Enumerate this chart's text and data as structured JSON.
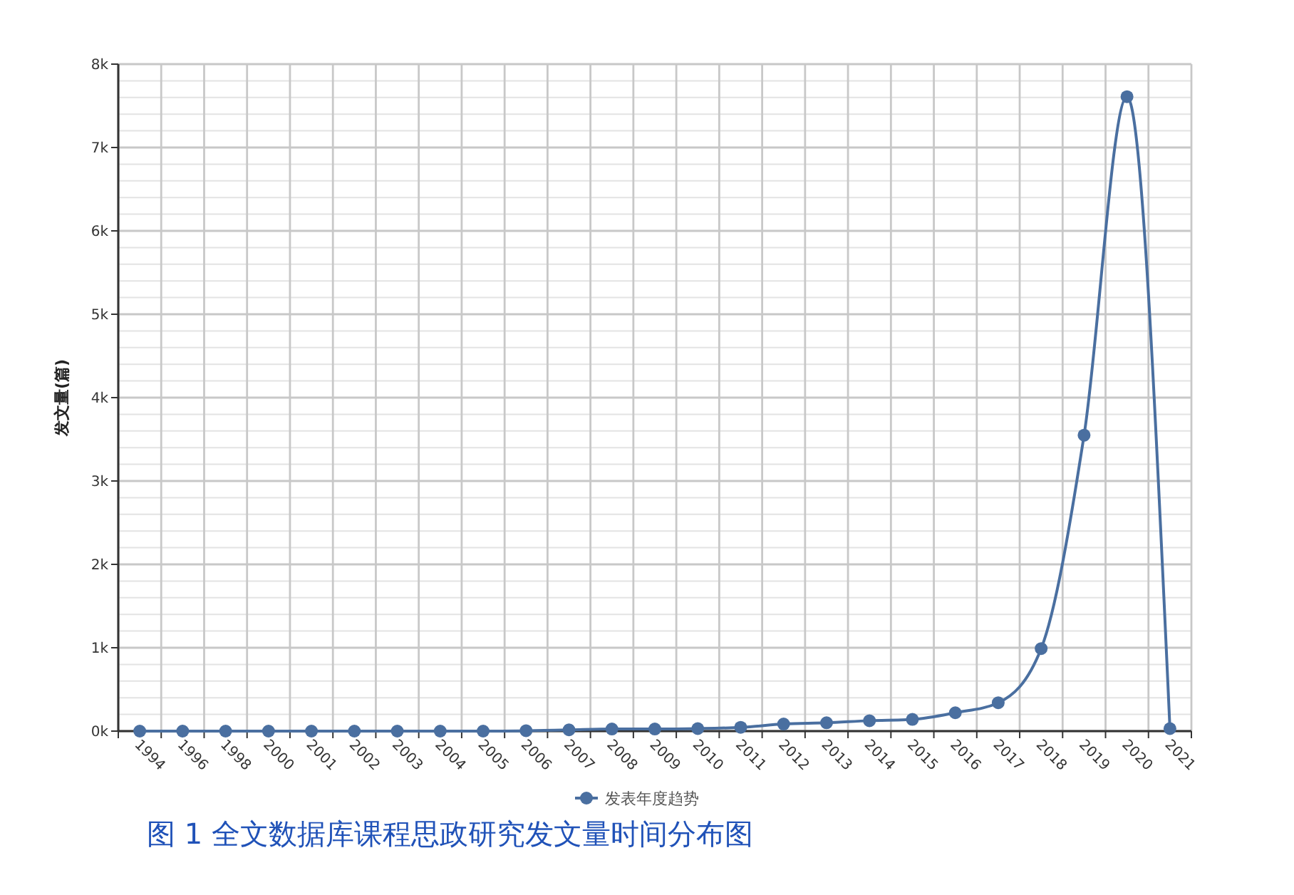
{
  "chart_data": {
    "type": "line",
    "ylabel": "发文量(篇)",
    "categories": [
      "1994",
      "1996",
      "1998",
      "2000",
      "2001",
      "2002",
      "2003",
      "2004",
      "2005",
      "2006",
      "2007",
      "2008",
      "2009",
      "2010",
      "2011",
      "2012",
      "2013",
      "2014",
      "2015",
      "2016",
      "2017",
      "2018",
      "2019",
      "2020",
      "2021"
    ],
    "series": [
      {
        "name": "发表年度趋势",
        "color": "#4a6fa0",
        "values": [
          0,
          0,
          0,
          0,
          0,
          0,
          0,
          0,
          0,
          5,
          15,
          25,
          25,
          30,
          45,
          85,
          100,
          125,
          140,
          220,
          340,
          990,
          3550,
          7610,
          30
        ]
      }
    ],
    "ylim": [
      0,
      8000
    ],
    "yticks": [
      {
        "value": 0,
        "label": "0k"
      },
      {
        "value": 200,
        "label": null
      },
      {
        "value": 400,
        "label": null
      },
      {
        "value": 600,
        "label": null
      },
      {
        "value": 800,
        "label": null
      },
      {
        "value": 1000,
        "label": "1k"
      },
      {
        "value": 1200,
        "label": null
      },
      {
        "value": 1400,
        "label": null
      },
      {
        "value": 1600,
        "label": null
      },
      {
        "value": 1800,
        "label": null
      },
      {
        "value": 2000,
        "label": "2k"
      },
      {
        "value": 2200,
        "label": null
      },
      {
        "value": 2400,
        "label": null
      },
      {
        "value": 2600,
        "label": null
      },
      {
        "value": 2800,
        "label": null
      },
      {
        "value": 3000,
        "label": "3k"
      },
      {
        "value": 3200,
        "label": null
      },
      {
        "value": 3400,
        "label": null
      },
      {
        "value": 3600,
        "label": null
      },
      {
        "value": 3800,
        "label": null
      },
      {
        "value": 4000,
        "label": "4k"
      },
      {
        "value": 4200,
        "label": null
      },
      {
        "value": 4400,
        "label": null
      },
      {
        "value": 4600,
        "label": null
      },
      {
        "value": 4800,
        "label": null
      },
      {
        "value": 5000,
        "label": "5k"
      },
      {
        "value": 5200,
        "label": null
      },
      {
        "value": 5400,
        "label": null
      },
      {
        "value": 5600,
        "label": null
      },
      {
        "value": 5800,
        "label": null
      },
      {
        "value": 6000,
        "label": "6k"
      },
      {
        "value": 6200,
        "label": null
      },
      {
        "value": 6400,
        "label": null
      },
      {
        "value": 6600,
        "label": null
      },
      {
        "value": 6800,
        "label": null
      },
      {
        "value": 7000,
        "label": "7k"
      },
      {
        "value": 7200,
        "label": null
      },
      {
        "value": 7400,
        "label": null
      },
      {
        "value": 7600,
        "label": null
      },
      {
        "value": 7800,
        "label": null
      },
      {
        "value": 8000,
        "label": "8k"
      }
    ],
    "grid": true,
    "legend": "bottom",
    "marker": "circle",
    "line_style": "solid",
    "annotations": [
      "图 1 全文数据库课程思政研究发文量时间分布图"
    ]
  }
}
